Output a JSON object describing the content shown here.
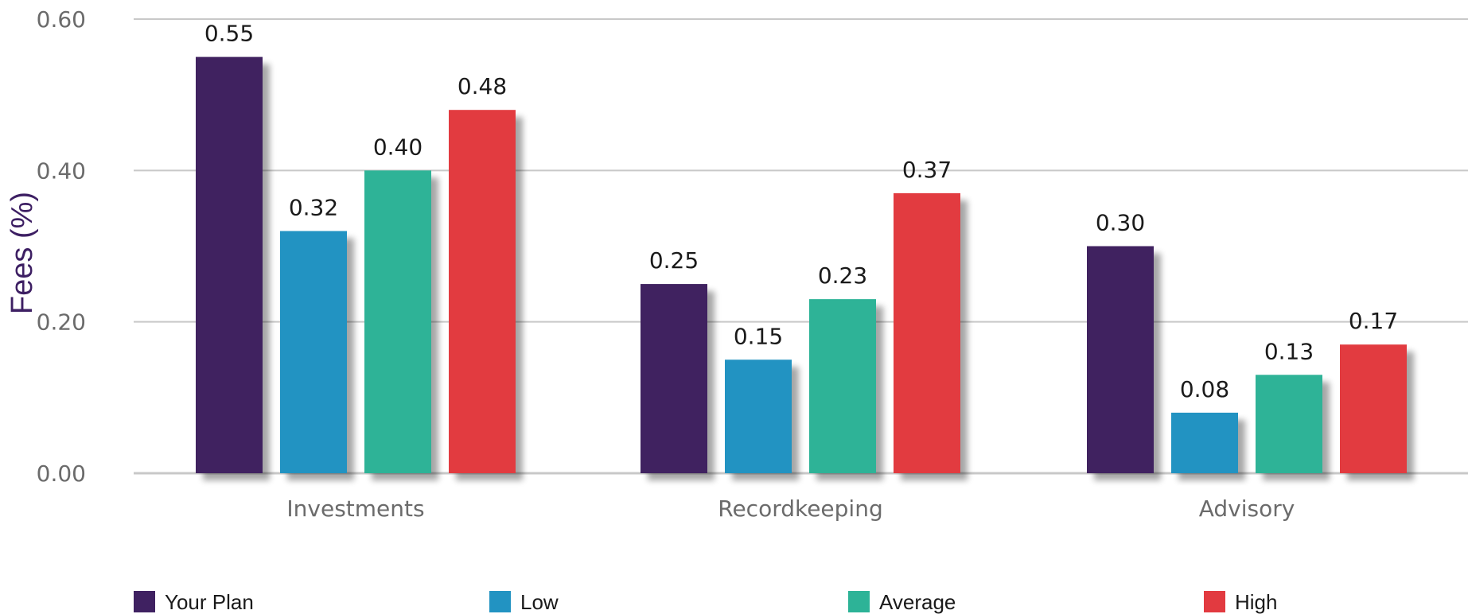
{
  "chart_data": {
    "type": "bar",
    "categories": [
      "Investments",
      "Recordkeeping",
      "Advisory"
    ],
    "series": [
      {
        "name": "Your Plan",
        "color": "#3f2161",
        "values": [
          0.55,
          0.25,
          0.3
        ]
      },
      {
        "name": "Low",
        "color": "#2293c2",
        "values": [
          0.32,
          0.15,
          0.08
        ]
      },
      {
        "name": "Average",
        "color": "#2db397",
        "values": [
          0.4,
          0.23,
          0.13
        ]
      },
      {
        "name": "High",
        "color": "#e23a40",
        "values": [
          0.48,
          0.37,
          0.17
        ]
      }
    ],
    "data_labels": [
      [
        "0.55",
        "0.25",
        "0.30"
      ],
      [
        "0.32",
        "0.15",
        "0.08"
      ],
      [
        "0.40",
        "0.23",
        "0.13"
      ],
      [
        "0.48",
        "0.37",
        "0.17"
      ]
    ],
    "ylabel": "Fees (%)",
    "xlabel": "",
    "ylim": [
      0,
      0.6
    ],
    "yticks": [
      "0.00",
      "0.20",
      "0.40",
      "0.60"
    ],
    "grid": true,
    "legend_position": "bottom"
  }
}
